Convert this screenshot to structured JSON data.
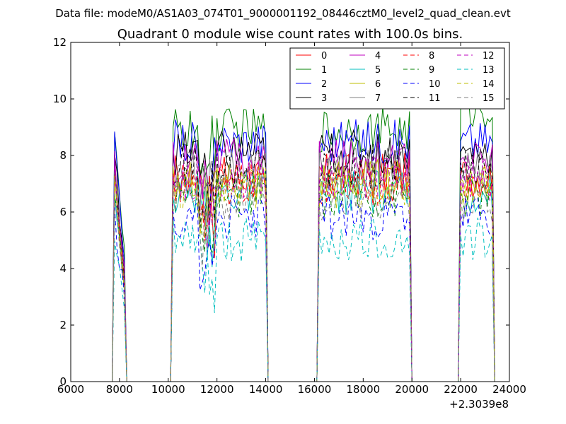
{
  "chart_data": {
    "type": "line",
    "suptitle": "Data file: modeM0/AS1A03_074T01_9000001192_08446cztM0_level2_quad_clean.evt",
    "title": "Quadrant 0 module wise count rates with 100.0s bins.",
    "xlabel": "",
    "ylabel": "",
    "x_offset_label": "+2.3039e8",
    "xlim": [
      6000,
      24000
    ],
    "ylim": [
      0,
      12
    ],
    "xticks": [
      6000,
      8000,
      10000,
      12000,
      14000,
      16000,
      18000,
      20000,
      22000,
      24000
    ],
    "yticks": [
      0,
      2,
      4,
      6,
      8,
      10,
      12
    ],
    "legend_position": "top-right",
    "segments": [
      [
        7800,
        8200
      ],
      [
        10200,
        14000
      ],
      [
        16200,
        19900
      ],
      [
        22000,
        23300
      ]
    ],
    "series": [
      {
        "name": "0",
        "color": "#ff0000",
        "dash": "solid",
        "level": 7.3
      },
      {
        "name": "1",
        "color": "#008000",
        "dash": "solid",
        "level": 8.9
      },
      {
        "name": "2",
        "color": "#0000ff",
        "dash": "solid",
        "level": 8.5
      },
      {
        "name": "3",
        "color": "#000000",
        "dash": "solid",
        "level": 8.1
      },
      {
        "name": "4",
        "color": "#bf00bf",
        "dash": "solid",
        "level": 7.8
      },
      {
        "name": "5",
        "color": "#00bfbf",
        "dash": "solid",
        "level": 6.7
      },
      {
        "name": "6",
        "color": "#bfbf00",
        "dash": "solid",
        "level": 7.1
      },
      {
        "name": "7",
        "color": "#808080",
        "dash": "solid",
        "level": 7.5
      },
      {
        "name": "8",
        "color": "#ff0000",
        "dash": "dashed",
        "level": 7.0
      },
      {
        "name": "9",
        "color": "#008000",
        "dash": "dashed",
        "level": 6.6
      },
      {
        "name": "10",
        "color": "#0000ff",
        "dash": "dashed",
        "level": 5.8
      },
      {
        "name": "11",
        "color": "#000000",
        "dash": "dashed",
        "level": 7.6
      },
      {
        "name": "12",
        "color": "#bf00bf",
        "dash": "dashed",
        "level": 7.2
      },
      {
        "name": "13",
        "color": "#00bfbf",
        "dash": "dashed",
        "level": 5.0
      },
      {
        "name": "14",
        "color": "#bfbf00",
        "dash": "dashed",
        "level": 6.9
      },
      {
        "name": "15",
        "color": "#808080",
        "dash": "dashed",
        "level": 6.4
      }
    ]
  }
}
